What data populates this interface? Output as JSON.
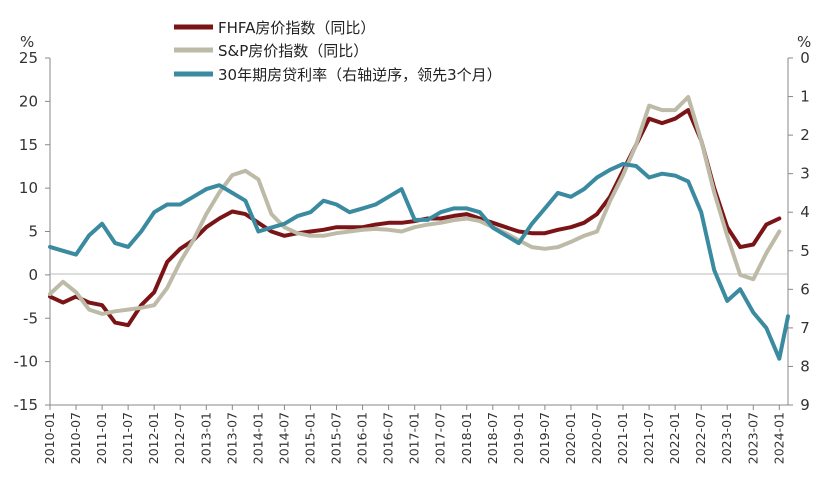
{
  "chart_data": {
    "type": "line",
    "y_left": {
      "unit": "%",
      "ticks": [
        "25",
        "20",
        "15",
        "10",
        "5",
        "0",
        "-5",
        "-10",
        "-15"
      ],
      "range": [
        -15,
        25
      ]
    },
    "y_right": {
      "unit": "%",
      "ticks": [
        "0",
        "1",
        "2",
        "3",
        "4",
        "5",
        "6",
        "7",
        "8",
        "9"
      ],
      "range": [
        0,
        9
      ],
      "reversed": true
    },
    "x_tick_labels": [
      "2010-01",
      "2010-07",
      "2011-01",
      "2011-07",
      "2012-01",
      "2012-07",
      "2013-01",
      "2013-07",
      "2014-01",
      "2014-07",
      "2015-01",
      "2015-07",
      "2016-01",
      "2016-07",
      "2017-01",
      "2017-07",
      "2018-01",
      "2018-07",
      "2019-01",
      "2019-07",
      "2020-01",
      "2020-07",
      "2021-01",
      "2021-07",
      "2022-01",
      "2022-07",
      "2023-01",
      "2023-07",
      "2024-01"
    ],
    "x_range": [
      "2010-01",
      "2024-03"
    ],
    "legend": {
      "placement": "top-center",
      "items": [
        {
          "label": "FHFA房价指数（同比）",
          "color": "#7b1416"
        },
        {
          "label": "S&P房价指数（同比）",
          "color": "#bdbba8"
        },
        {
          "label": "30年期房贷利率（右轴逆序，领先3个月）",
          "color": "#3a8aa0"
        }
      ]
    },
    "series": [
      {
        "name": "FHFA房价指数（同比）",
        "axis": "left",
        "color": "#7b1416",
        "points": [
          [
            "2010-01",
            -2.5
          ],
          [
            "2010-04",
            -3.2
          ],
          [
            "2010-07",
            -2.5
          ],
          [
            "2010-10",
            -3.2
          ],
          [
            "2011-01",
            -3.5
          ],
          [
            "2011-04",
            -5.5
          ],
          [
            "2011-07",
            -5.8
          ],
          [
            "2011-10",
            -3.5
          ],
          [
            "2012-01",
            -2.0
          ],
          [
            "2012-04",
            1.5
          ],
          [
            "2012-07",
            3.0
          ],
          [
            "2012-10",
            4.0
          ],
          [
            "2013-01",
            5.5
          ],
          [
            "2013-04",
            6.5
          ],
          [
            "2013-07",
            7.3
          ],
          [
            "2013-10",
            7.0
          ],
          [
            "2014-01",
            6.0
          ],
          [
            "2014-04",
            5.0
          ],
          [
            "2014-07",
            4.5
          ],
          [
            "2014-10",
            4.8
          ],
          [
            "2015-01",
            5.0
          ],
          [
            "2015-04",
            5.2
          ],
          [
            "2015-07",
            5.5
          ],
          [
            "2015-10",
            5.5
          ],
          [
            "2016-01",
            5.5
          ],
          [
            "2016-04",
            5.8
          ],
          [
            "2016-07",
            6.0
          ],
          [
            "2016-10",
            6.0
          ],
          [
            "2017-01",
            6.2
          ],
          [
            "2017-04",
            6.5
          ],
          [
            "2017-07",
            6.5
          ],
          [
            "2017-10",
            6.8
          ],
          [
            "2018-01",
            7.0
          ],
          [
            "2018-04",
            6.5
          ],
          [
            "2018-07",
            6.0
          ],
          [
            "2018-10",
            5.5
          ],
          [
            "2019-01",
            5.0
          ],
          [
            "2019-04",
            4.8
          ],
          [
            "2019-07",
            4.8
          ],
          [
            "2019-10",
            5.2
          ],
          [
            "2020-01",
            5.5
          ],
          [
            "2020-04",
            6.0
          ],
          [
            "2020-07",
            7.0
          ],
          [
            "2020-10",
            9.0
          ],
          [
            "2021-01",
            12.0
          ],
          [
            "2021-04",
            15.0
          ],
          [
            "2021-07",
            18.0
          ],
          [
            "2021-10",
            17.5
          ],
          [
            "2022-01",
            18.0
          ],
          [
            "2022-04",
            19.0
          ],
          [
            "2022-07",
            15.5
          ],
          [
            "2022-10",
            10.0
          ],
          [
            "2023-01",
            5.5
          ],
          [
            "2023-04",
            3.2
          ],
          [
            "2023-07",
            3.5
          ],
          [
            "2023-10",
            5.8
          ],
          [
            "2024-01",
            6.5
          ]
        ]
      },
      {
        "name": "S&P房价指数（同比）",
        "axis": "left",
        "color": "#bdbba8",
        "points": [
          [
            "2010-01",
            -2.2
          ],
          [
            "2010-04",
            -0.8
          ],
          [
            "2010-07",
            -2.0
          ],
          [
            "2010-10",
            -4.0
          ],
          [
            "2011-01",
            -4.5
          ],
          [
            "2011-04",
            -4.2
          ],
          [
            "2011-07",
            -4.0
          ],
          [
            "2011-10",
            -3.8
          ],
          [
            "2012-01",
            -3.5
          ],
          [
            "2012-04",
            -1.5
          ],
          [
            "2012-07",
            1.5
          ],
          [
            "2012-10",
            4.0
          ],
          [
            "2013-01",
            7.0
          ],
          [
            "2013-04",
            9.5
          ],
          [
            "2013-07",
            11.5
          ],
          [
            "2013-10",
            12.0
          ],
          [
            "2014-01",
            11.0
          ],
          [
            "2014-04",
            7.0
          ],
          [
            "2014-07",
            5.5
          ],
          [
            "2014-10",
            4.8
          ],
          [
            "2015-01",
            4.5
          ],
          [
            "2015-04",
            4.5
          ],
          [
            "2015-07",
            4.8
          ],
          [
            "2015-10",
            5.0
          ],
          [
            "2016-01",
            5.2
          ],
          [
            "2016-04",
            5.3
          ],
          [
            "2016-07",
            5.2
          ],
          [
            "2016-10",
            5.0
          ],
          [
            "2017-01",
            5.5
          ],
          [
            "2017-04",
            5.8
          ],
          [
            "2017-07",
            6.0
          ],
          [
            "2017-10",
            6.3
          ],
          [
            "2018-01",
            6.5
          ],
          [
            "2018-04",
            6.2
          ],
          [
            "2018-07",
            5.5
          ],
          [
            "2018-10",
            4.8
          ],
          [
            "2019-01",
            4.0
          ],
          [
            "2019-04",
            3.2
          ],
          [
            "2019-07",
            3.0
          ],
          [
            "2019-10",
            3.2
          ],
          [
            "2020-01",
            3.8
          ],
          [
            "2020-04",
            4.5
          ],
          [
            "2020-07",
            5.0
          ],
          [
            "2020-10",
            8.5
          ],
          [
            "2021-01",
            11.5
          ],
          [
            "2021-04",
            15.0
          ],
          [
            "2021-07",
            19.5
          ],
          [
            "2021-10",
            19.0
          ],
          [
            "2022-01",
            19.0
          ],
          [
            "2022-04",
            20.5
          ],
          [
            "2022-07",
            15.5
          ],
          [
            "2022-10",
            9.5
          ],
          [
            "2023-01",
            4.5
          ],
          [
            "2023-04",
            0.0
          ],
          [
            "2023-07",
            -0.5
          ],
          [
            "2023-10",
            2.5
          ],
          [
            "2024-01",
            5.0
          ]
        ]
      },
      {
        "name": "30年期房贷利率（右轴逆序，领先3个月）",
        "axis": "right",
        "color": "#3a8aa0",
        "points": [
          [
            "2010-01",
            4.9
          ],
          [
            "2010-04",
            5.0
          ],
          [
            "2010-07",
            5.1
          ],
          [
            "2010-10",
            4.6
          ],
          [
            "2011-01",
            4.3
          ],
          [
            "2011-04",
            4.8
          ],
          [
            "2011-07",
            4.9
          ],
          [
            "2011-10",
            4.5
          ],
          [
            "2012-01",
            4.0
          ],
          [
            "2012-04",
            3.8
          ],
          [
            "2012-07",
            3.8
          ],
          [
            "2012-10",
            3.6
          ],
          [
            "2013-01",
            3.4
          ],
          [
            "2013-04",
            3.3
          ],
          [
            "2013-07",
            3.5
          ],
          [
            "2013-10",
            3.7
          ],
          [
            "2014-01",
            4.5
          ],
          [
            "2014-04",
            4.4
          ],
          [
            "2014-07",
            4.3
          ],
          [
            "2014-10",
            4.1
          ],
          [
            "2015-01",
            4.0
          ],
          [
            "2015-04",
            3.7
          ],
          [
            "2015-07",
            3.8
          ],
          [
            "2015-10",
            4.0
          ],
          [
            "2016-01",
            3.9
          ],
          [
            "2016-04",
            3.8
          ],
          [
            "2016-07",
            3.6
          ],
          [
            "2016-10",
            3.4
          ],
          [
            "2017-01",
            4.2
          ],
          [
            "2017-04",
            4.2
          ],
          [
            "2017-07",
            4.0
          ],
          [
            "2017-10",
            3.9
          ],
          [
            "2018-01",
            3.9
          ],
          [
            "2018-04",
            4.0
          ],
          [
            "2018-07",
            4.4
          ],
          [
            "2018-10",
            4.6
          ],
          [
            "2019-01",
            4.8
          ],
          [
            "2019-04",
            4.3
          ],
          [
            "2019-07",
            3.9
          ],
          [
            "2019-10",
            3.5
          ],
          [
            "2020-01",
            3.6
          ],
          [
            "2020-04",
            3.4
          ],
          [
            "2020-07",
            3.1
          ],
          [
            "2020-10",
            2.9
          ],
          [
            "2021-01",
            2.75
          ],
          [
            "2021-04",
            2.8
          ],
          [
            "2021-07",
            3.1
          ],
          [
            "2021-10",
            3.0
          ],
          [
            "2022-01",
            3.05
          ],
          [
            "2022-04",
            3.2
          ],
          [
            "2022-07",
            4.0
          ],
          [
            "2022-10",
            5.5
          ],
          [
            "2023-01",
            6.3
          ],
          [
            "2023-04",
            6.0
          ],
          [
            "2023-07",
            6.6
          ],
          [
            "2023-10",
            7.0
          ],
          [
            "2024-01",
            7.8
          ],
          [
            "2024-03",
            6.7
          ]
        ]
      }
    ]
  }
}
